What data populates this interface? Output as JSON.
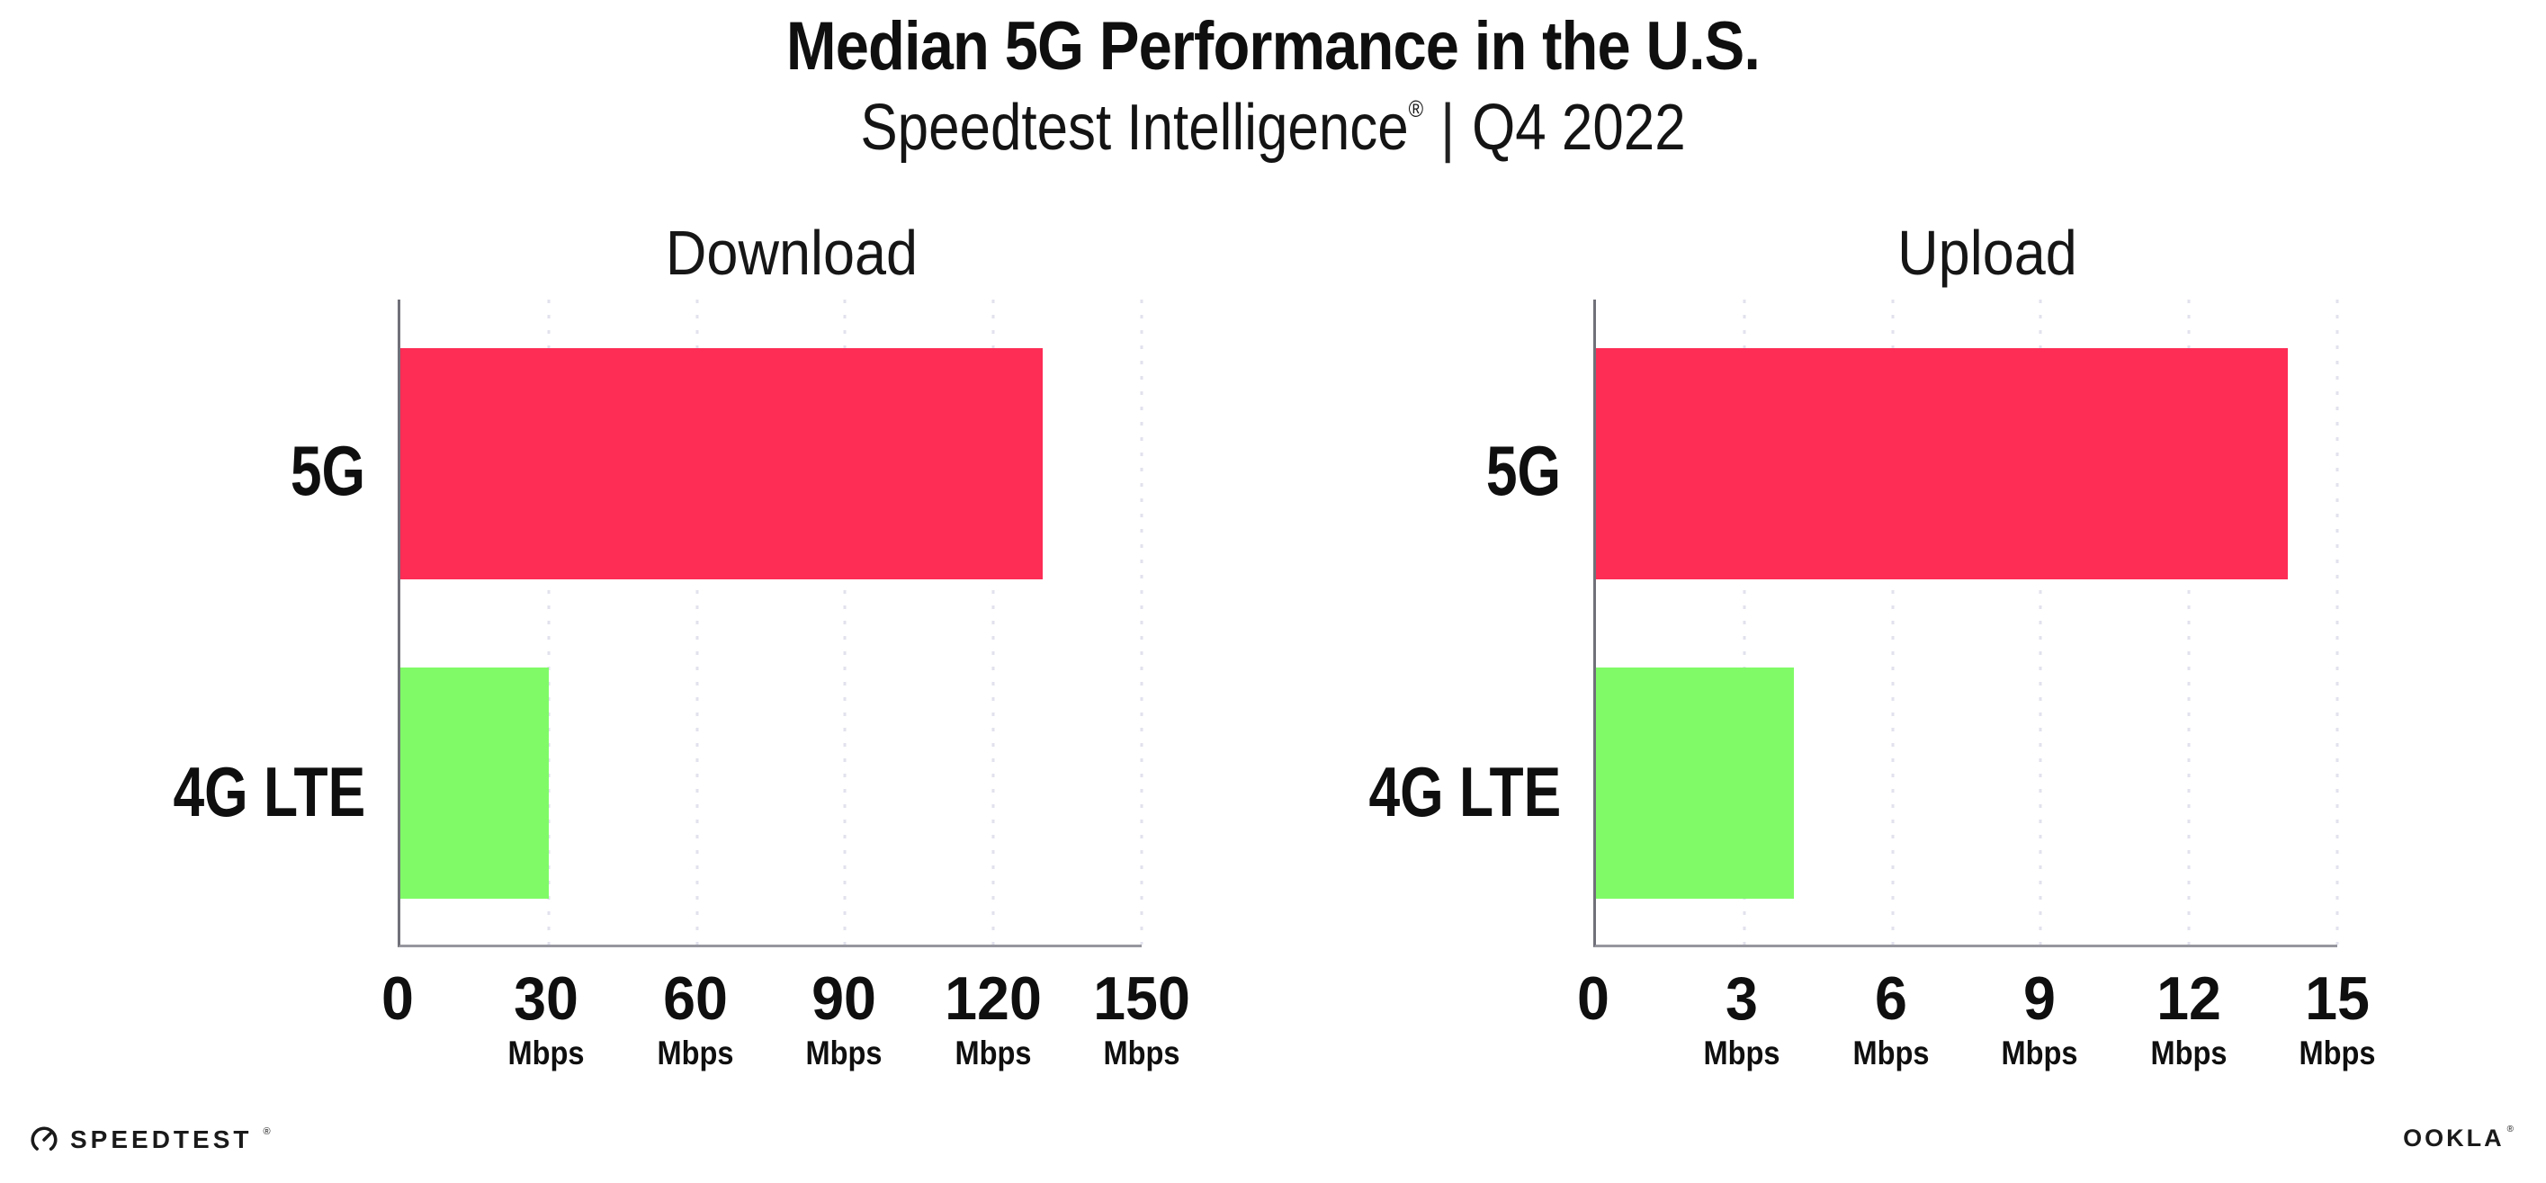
{
  "page": {
    "background": "#FFFFFF"
  },
  "header": {
    "title": "Median 5G Performance in the U.S.",
    "subtitle": {
      "brand": "Speedtest Intelligence",
      "registered_mark": "®",
      "divider": "|",
      "period": "Q4 2022"
    }
  },
  "chart_data": [
    {
      "type": "bar",
      "orientation": "horizontal",
      "title": "Download",
      "categories": [
        "5G",
        "4G LTE"
      ],
      "values": [
        130,
        30
      ],
      "unit": "Mbps",
      "xlim": [
        0,
        150
      ],
      "xticks": [
        0,
        30,
        60,
        90,
        120,
        150
      ],
      "bar_colors": [
        "#FD2D56",
        "#80FB67"
      ],
      "grid": "vertical-dotted",
      "legend": "none"
    },
    {
      "type": "bar",
      "orientation": "horizontal",
      "title": "Upload",
      "categories": [
        "5G",
        "4G LTE"
      ],
      "values": [
        14,
        4
      ],
      "unit": "Mbps",
      "xlim": [
        0,
        15
      ],
      "xticks": [
        0,
        3,
        6,
        9,
        12,
        15
      ],
      "bar_colors": [
        "#FD2D56",
        "#80FB67"
      ],
      "grid": "vertical-dotted",
      "legend": "none"
    }
  ],
  "footer": {
    "speedtest_logo_text": "SPEEDTEST",
    "speedtest_mark": "®",
    "ookla_logo_text": "OOKLA",
    "ookla_mark": "®"
  },
  "colors": {
    "bar_5g": "#FD2D56",
    "bar_4g_lte": "#80FB67",
    "gridline": "#E2E2EE",
    "axis_x": "#97979F",
    "axis_y": "#70707A",
    "text": "#0F0F0F"
  }
}
